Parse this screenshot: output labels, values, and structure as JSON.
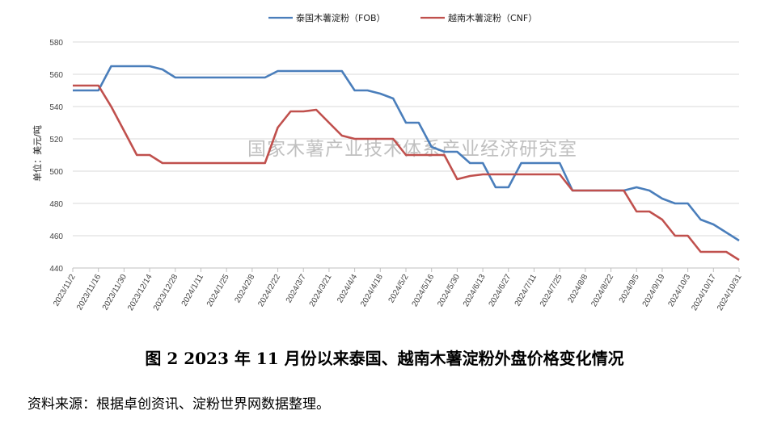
{
  "caption": "图 2    2023 年 11 月份以来泰国、越南木薯淀粉外盘价格变化情况",
  "source": "资料来源：根据卓创资讯、淀粉世界网数据整理。",
  "watermark": "国家木薯产业技术体系产业经济研究室",
  "colors": {
    "thai": "#4a7ebb",
    "vietnam": "#c0504d",
    "grid": "#d9d9d9",
    "axis": "#bfbfbf"
  },
  "chart_data": {
    "type": "line",
    "ylabel": "单位：美元/吨",
    "ylim": [
      440,
      580
    ],
    "yticks": [
      440,
      460,
      480,
      500,
      520,
      540,
      560,
      580
    ],
    "legend_position": "top-center",
    "x_tick_labels": [
      "2023/11/2",
      "2023/11/16",
      "2023/11/30",
      "2023/12/14",
      "2023/12/28",
      "2024/1/11",
      "2024/1/25",
      "2024/2/8",
      "2024/2/22",
      "2024/3/7",
      "2024/3/21",
      "2024/4/4",
      "2024/4/18",
      "2024/5/2",
      "2024/5/16",
      "2024/5/30",
      "2024/6/13",
      "2024/6/27",
      "2024/7/11",
      "2024/7/25",
      "2024/8/8",
      "2024/8/22",
      "2024/9/5",
      "2024/9/19",
      "2024/10/3",
      "2024/10/17",
      "2024/10/31"
    ],
    "series": [
      {
        "name": "泰国木薯淀粉（FOB）",
        "color": "#4a7ebb",
        "points": [
          [
            "2023/11/2",
            550
          ],
          [
            "2023/11/16",
            550
          ],
          [
            "2023/11/23",
            565
          ],
          [
            "2023/12/14",
            565
          ],
          [
            "2023/12/21",
            563
          ],
          [
            "2023/12/28",
            558
          ],
          [
            "2024/1/4",
            558
          ],
          [
            "2024/1/11",
            558
          ],
          [
            "2024/1/18",
            558
          ],
          [
            "2024/1/25",
            558
          ],
          [
            "2024/2/1",
            558
          ],
          [
            "2024/2/8",
            558
          ],
          [
            "2024/2/15",
            558
          ],
          [
            "2024/2/22",
            562
          ],
          [
            "2024/3/7",
            562
          ],
          [
            "2024/3/14",
            562
          ],
          [
            "2024/3/21",
            562
          ],
          [
            "2024/3/28",
            562
          ],
          [
            "2024/4/4",
            550
          ],
          [
            "2024/4/11",
            550
          ],
          [
            "2024/4/18",
            548
          ],
          [
            "2024/4/25",
            545
          ],
          [
            "2024/5/2",
            530
          ],
          [
            "2024/5/9",
            530
          ],
          [
            "2024/5/16",
            515
          ],
          [
            "2024/5/23",
            512
          ],
          [
            "2024/5/30",
            512
          ],
          [
            "2024/6/6",
            505
          ],
          [
            "2024/6/13",
            505
          ],
          [
            "2024/6/20",
            490
          ],
          [
            "2024/6/27",
            490
          ],
          [
            "2024/7/4",
            505
          ],
          [
            "2024/7/11",
            505
          ],
          [
            "2024/7/18",
            505
          ],
          [
            "2024/7/25",
            505
          ],
          [
            "2024/8/1",
            488
          ],
          [
            "2024/8/8",
            488
          ],
          [
            "2024/8/15",
            488
          ],
          [
            "2024/8/22",
            488
          ],
          [
            "2024/8/29",
            488
          ],
          [
            "2024/9/5",
            490
          ],
          [
            "2024/9/12",
            488
          ],
          [
            "2024/9/19",
            483
          ],
          [
            "2024/9/26",
            480
          ],
          [
            "2024/10/3",
            480
          ],
          [
            "2024/10/10",
            470
          ],
          [
            "2024/10/17",
            467
          ],
          [
            "2024/10/24",
            462
          ],
          [
            "2024/10/31",
            457
          ]
        ]
      },
      {
        "name": "越南木薯淀粉（CNF）",
        "color": "#c0504d",
        "points": [
          [
            "2023/11/2",
            553
          ],
          [
            "2023/11/16",
            553
          ],
          [
            "2023/11/23",
            540
          ],
          [
            "2023/11/30",
            525
          ],
          [
            "2023/12/7",
            510
          ],
          [
            "2023/12/14",
            510
          ],
          [
            "2023/12/21",
            505
          ],
          [
            "2023/12/28",
            505
          ],
          [
            "2024/1/4",
            505
          ],
          [
            "2024/1/11",
            505
          ],
          [
            "2024/1/18",
            505
          ],
          [
            "2024/1/25",
            505
          ],
          [
            "2024/2/1",
            505
          ],
          [
            "2024/2/8",
            505
          ],
          [
            "2024/2/15",
            505
          ],
          [
            "2024/2/22",
            527
          ],
          [
            "2024/2/29",
            537
          ],
          [
            "2024/3/7",
            537
          ],
          [
            "2024/3/14",
            538
          ],
          [
            "2024/3/21",
            530
          ],
          [
            "2024/3/28",
            522
          ],
          [
            "2024/4/4",
            520
          ],
          [
            "2024/4/11",
            520
          ],
          [
            "2024/4/18",
            520
          ],
          [
            "2024/4/25",
            520
          ],
          [
            "2024/5/2",
            510
          ],
          [
            "2024/5/9",
            510
          ],
          [
            "2024/5/16",
            510
          ],
          [
            "2024/5/23",
            510
          ],
          [
            "2024/5/30",
            495
          ],
          [
            "2024/6/6",
            497
          ],
          [
            "2024/6/13",
            498
          ],
          [
            "2024/6/20",
            498
          ],
          [
            "2024/6/27",
            498
          ],
          [
            "2024/7/4",
            498
          ],
          [
            "2024/7/11",
            498
          ],
          [
            "2024/7/18",
            498
          ],
          [
            "2024/7/25",
            498
          ],
          [
            "2024/8/1",
            488
          ],
          [
            "2024/8/8",
            488
          ],
          [
            "2024/8/15",
            488
          ],
          [
            "2024/8/22",
            488
          ],
          [
            "2024/8/29",
            488
          ],
          [
            "2024/9/5",
            475
          ],
          [
            "2024/9/12",
            475
          ],
          [
            "2024/9/19",
            470
          ],
          [
            "2024/9/26",
            460
          ],
          [
            "2024/10/3",
            460
          ],
          [
            "2024/10/10",
            450
          ],
          [
            "2024/10/17",
            450
          ],
          [
            "2024/10/24",
            450
          ],
          [
            "2024/10/31",
            445
          ]
        ]
      }
    ]
  }
}
